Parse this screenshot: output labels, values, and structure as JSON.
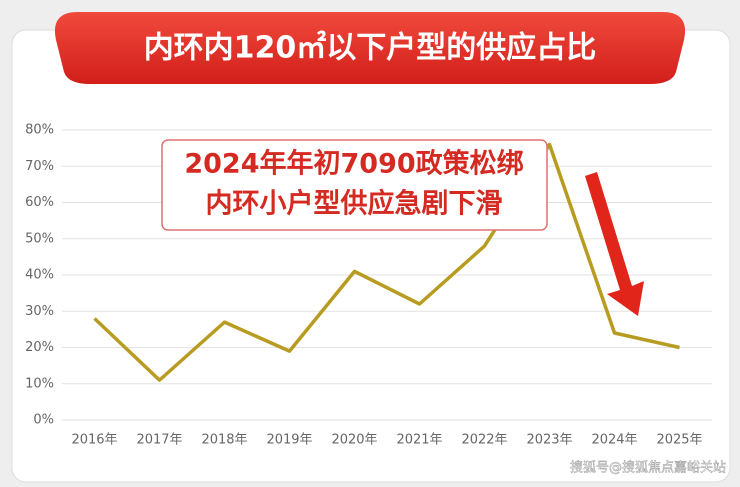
{
  "chart_data": {
    "type": "line",
    "title": "内环内120㎡以下户型的供应占比",
    "annotation": [
      "2024年年初7090政策松绑",
      "内环小户型供应急剧下滑"
    ],
    "categories": [
      "2016年",
      "2017年",
      "2018年",
      "2019年",
      "2020年",
      "2021年",
      "2022年",
      "2023年",
      "2024年",
      "2025年"
    ],
    "values": [
      28,
      11,
      27,
      19,
      41,
      32,
      48,
      76,
      24,
      20
    ],
    "color": "#b89c22",
    "ylim": [
      0,
      80
    ],
    "yticks": [
      {
        "value": 0,
        "label": "0%"
      },
      {
        "value": 10,
        "label": "10%"
      },
      {
        "value": 20,
        "label": "20%"
      },
      {
        "value": 30,
        "label": "30%"
      },
      {
        "value": 40,
        "label": "40%"
      },
      {
        "value": 50,
        "label": "50%"
      },
      {
        "value": 60,
        "label": "60%"
      },
      {
        "value": 70,
        "label": "70%"
      },
      {
        "value": 80,
        "label": "80%"
      }
    ],
    "grid": true
  },
  "watermark": "搜狐号@搜狐焦点嘉峪关站"
}
